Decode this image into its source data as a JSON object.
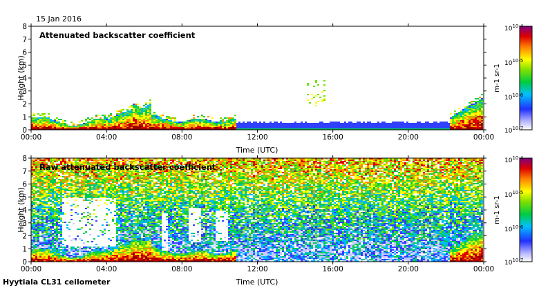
{
  "date": "15 Jan 2016",
  "footer": "Hyytiala CL31 ceilometer",
  "colorbar": {
    "tick_labels": [
      "10-4",
      "10-5",
      "10-6",
      "10-7"
    ],
    "unit_label": "m-1 sr-1",
    "range": [
      1e-07,
      0.0001
    ],
    "scale": "log"
  },
  "chart_data": [
    {
      "type": "heatmap",
      "title": "Attenuated backscatter coefficient",
      "xlabel": "Time (UTC)",
      "ylabel": "Height (km)",
      "xlim": [
        0,
        24
      ],
      "ylim": [
        0,
        8
      ],
      "x_tick_labels": [
        "00:00",
        "04:00",
        "08:00",
        "12:00",
        "16:00",
        "20:00",
        "00:00"
      ],
      "y_tick_labels": [
        "0",
        "1",
        "2",
        "3",
        "4",
        "5",
        "6",
        "7",
        "8"
      ],
      "colorscale": "log10 backscatter, 1e-7 (white/blue) to 1e-4 (dark red)",
      "features": [
        {
          "label": "boundary layer",
          "time_start": 0.0,
          "time_end": 10.9,
          "height_top_km": 1.2,
          "peak_height_km": 2.3,
          "peak_time": 5.8
        },
        {
          "label": "weak near-surface layer",
          "time_start": 10.9,
          "time_end": 22.3,
          "height_top_km": 0.7
        },
        {
          "label": "cloud fragments",
          "time_start": 14.6,
          "time_end": 15.6,
          "height_km": [
            1.7,
            3.8
          ]
        },
        {
          "label": "boundary layer",
          "time_start": 22.0,
          "time_end": 24.0,
          "height_top_km": 2.6
        }
      ]
    },
    {
      "type": "heatmap",
      "title": "Raw attenuated backscatter coefficient",
      "xlabel": "Time (UTC)",
      "ylabel": "Height (km)",
      "xlim": [
        0,
        24
      ],
      "ylim": [
        0,
        8
      ],
      "x_tick_labels": [
        "00:00",
        "04:00",
        "08:00",
        "12:00",
        "16:00",
        "20:00",
        "00:00"
      ],
      "y_tick_labels": [
        "0",
        "1",
        "2",
        "3",
        "4",
        "5",
        "6",
        "7",
        "8"
      ],
      "colorscale": "log10 backscatter, 1e-7 (white/blue) to 1e-4 (dark red)",
      "features": [
        {
          "label": "noise field",
          "time_start": 0.0,
          "time_end": 24.0,
          "height_km": [
            0,
            8
          ]
        },
        {
          "label": "signal gaps",
          "time_start": 1.5,
          "time_end": 10.9,
          "height_km": [
            1,
            5
          ]
        },
        {
          "label": "boundary layer",
          "time_start": 0.0,
          "time_end": 10.9,
          "height_top_km": 1.2
        },
        {
          "label": "boundary layer",
          "time_start": 22.0,
          "time_end": 24.0,
          "height_top_km": 2.6
        }
      ]
    }
  ]
}
